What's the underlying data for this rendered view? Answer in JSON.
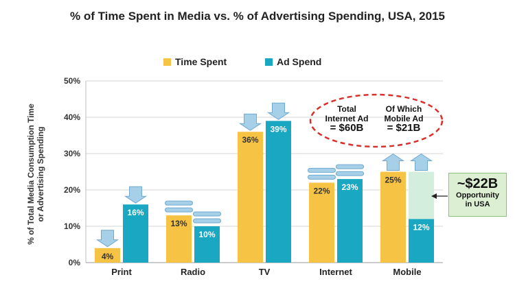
{
  "title": "% of Time Spent in Media vs. % of Advertising Spending, USA, 2015",
  "chart_data": {
    "type": "bar",
    "categories": [
      "Print",
      "Radio",
      "TV",
      "Internet",
      "Mobile"
    ],
    "series": [
      {
        "name": "Time Spent",
        "values": [
          4,
          13,
          36,
          22,
          25
        ],
        "labels": [
          "4%",
          "13%",
          "36%",
          "22%",
          "25%"
        ],
        "color": "#f6c344"
      },
      {
        "name": "Ad Spend",
        "values": [
          16,
          10,
          39,
          23,
          12
        ],
        "labels": [
          "16%",
          "10%",
          "39%",
          "23%",
          "12%"
        ],
        "color": "#1aa7c2"
      }
    ],
    "ylabel_line1": "% of Total Media Consumption Time",
    "ylabel_line2": "or Advertising Spending",
    "ylim": [
      0,
      50
    ],
    "yticks": [
      0,
      10,
      20,
      30,
      40,
      50
    ],
    "ytick_labels": [
      "0%",
      "10%",
      "20%",
      "30%",
      "40%",
      "50%"
    ],
    "legend_position": "top-center",
    "gap_fill": {
      "category": "Mobile",
      "from": 12,
      "to": 25,
      "color": "#d3eedd"
    }
  },
  "annotations": {
    "opportunity": {
      "value": "~$22B",
      "line1": "Opportunity",
      "line2": "in USA"
    },
    "oval": {
      "left_line1": "Total",
      "left_line2": "Internet Ad",
      "left_value": "= $60B",
      "right_line1": "Of Which",
      "right_line2": "Mobile Ad",
      "right_value": "= $21B"
    }
  },
  "colors": {
    "time_spent": "#f6c344",
    "ad_spend": "#1aa7c2",
    "arrow": "#a6cfe8",
    "oval": "#d9302c"
  }
}
